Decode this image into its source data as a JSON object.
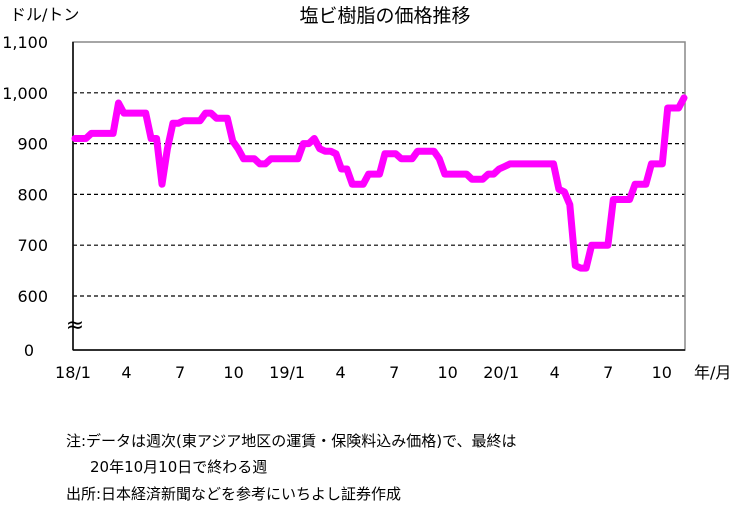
{
  "chart_data": {
    "type": "line",
    "title": "塩ビ樹脂の価格推移",
    "ylabel": "ドル/トン",
    "xlabel": "年/月",
    "ylim": [
      600,
      1100
    ],
    "y_ticks": [
      "1,100",
      "1,000",
      "900",
      "800",
      "700",
      "600"
    ],
    "y_zero_label": "0",
    "axis_break_symbol": "≈",
    "x_ticks": [
      "18/1",
      "4",
      "7",
      "10",
      "19/1",
      "4",
      "7",
      "10",
      "20/1",
      "4",
      "7",
      "10"
    ],
    "grid": true,
    "line_color": "#ff00ff",
    "series": [
      {
        "values": [
          910,
          910,
          910,
          920,
          920,
          920,
          920,
          920,
          980,
          960,
          960,
          960,
          960,
          960,
          910,
          910,
          820,
          890,
          940,
          940,
          945,
          945,
          945,
          945,
          960,
          960,
          950,
          950,
          950,
          905,
          890,
          870,
          870,
          870,
          860,
          860,
          870,
          870,
          870,
          870,
          870,
          870,
          900,
          900,
          910,
          890,
          885,
          885,
          880,
          850,
          850,
          820,
          820,
          820,
          840,
          840,
          840,
          880,
          880,
          880,
          870,
          870,
          870,
          885,
          885,
          885,
          885,
          870,
          840,
          840,
          840,
          840,
          840,
          830,
          830,
          830,
          840,
          840,
          850,
          855,
          860,
          860,
          860,
          860,
          860,
          860,
          860,
          860,
          860,
          810,
          805,
          780,
          660,
          655,
          655,
          700,
          700,
          700,
          700,
          790,
          790,
          790,
          790,
          820,
          820,
          820,
          860,
          860,
          860,
          970,
          970,
          970,
          990
        ]
      }
    ]
  },
  "notes": {
    "line1": "注:データは週次(東アジア地区の運賃・保険料込み価格)で、最終は",
    "line2": "20年10月10日で終わる週",
    "line3": "出所:日本経済新聞などを参考にいちよし証券作成"
  }
}
